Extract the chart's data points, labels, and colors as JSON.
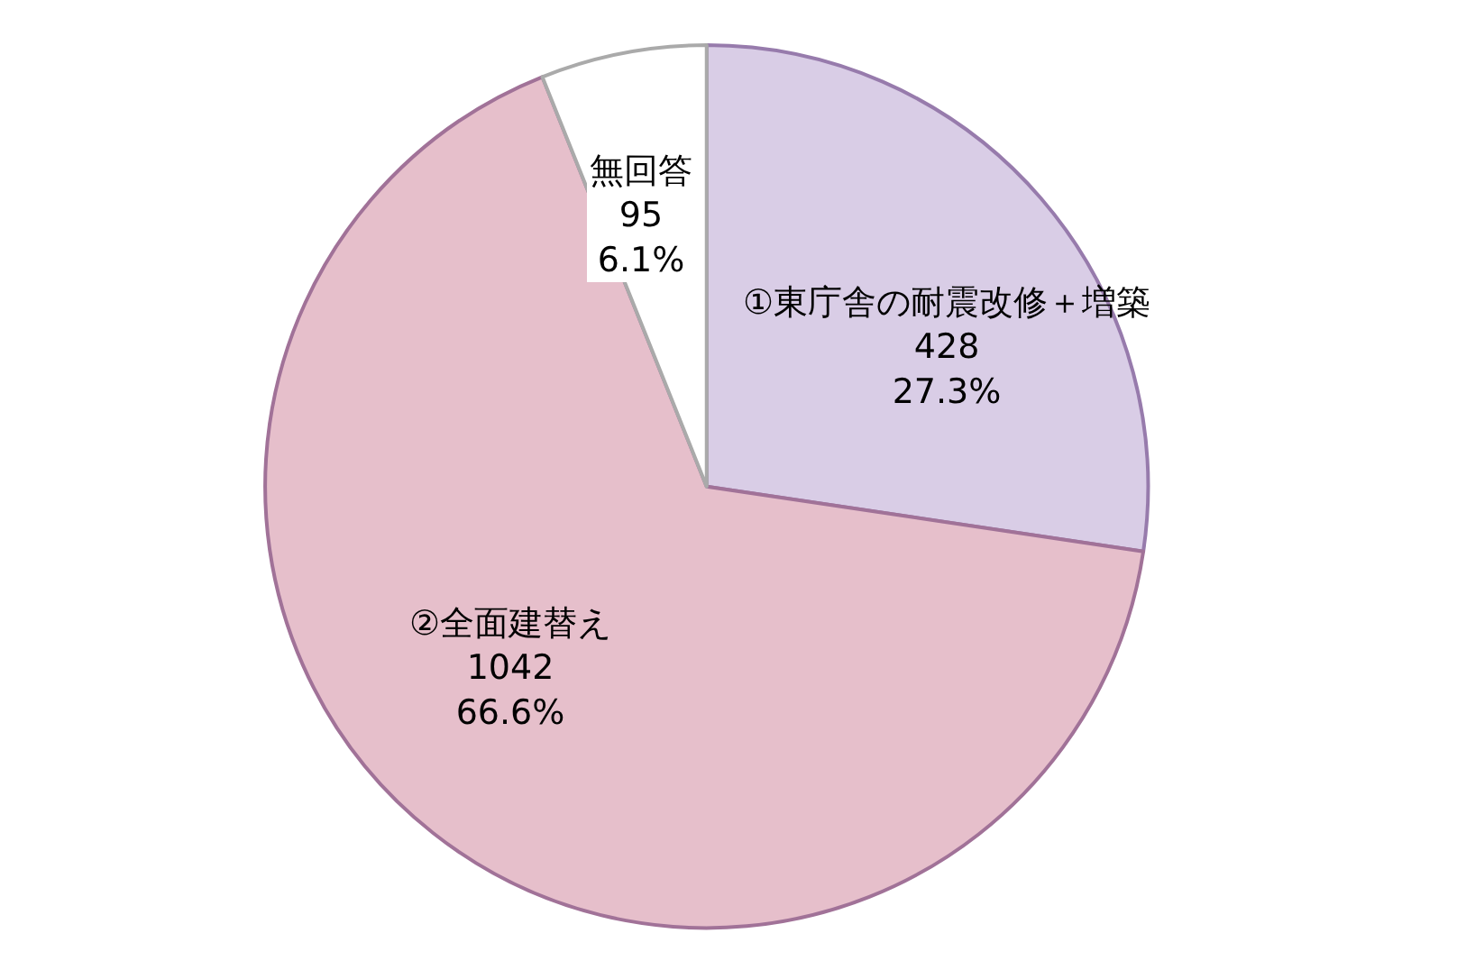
{
  "chart_data": {
    "type": "pie",
    "categories": [
      "①東庁舎の耐震改修＋増築",
      "②全面建替え",
      "無回答"
    ],
    "values": [
      428,
      1042,
      95
    ],
    "value_labels": [
      "428\n27.3%",
      "1042\n66.6%",
      "95\n6.1%"
    ],
    "colors": [
      "#d9cde6",
      "#e6bfcb",
      "#ffffff"
    ]
  }
}
